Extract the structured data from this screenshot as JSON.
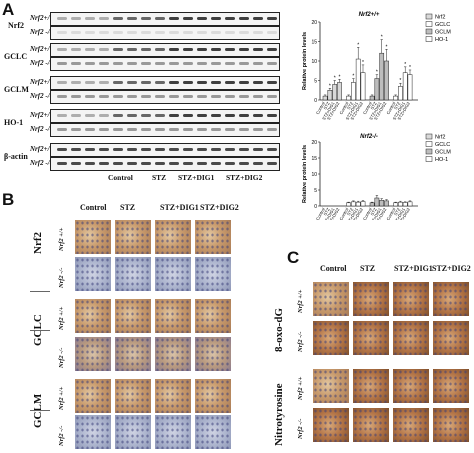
{
  "panels": {
    "a": "A",
    "b": "B",
    "c": "C"
  },
  "westerns": {
    "genotypes": [
      "Nrf2+/+",
      "Nrf2 -/-"
    ],
    "proteins": [
      "Nrf2",
      "GCLC",
      "GCLM",
      "HO-1",
      "β-actin"
    ],
    "groups": [
      "Control",
      "STZ",
      "STZ+DIG1",
      "STZ+DIG2"
    ]
  },
  "ihc_b": {
    "columns": [
      "Control",
      "STZ",
      "STZ+DIG1",
      "STZ+DIG2"
    ],
    "markers": [
      "Nrf2",
      "GCLC",
      "GCLM"
    ],
    "genotypes": [
      "Nrf2 +/+",
      "Nrf2 -/-"
    ]
  },
  "ihc_c": {
    "columns": [
      "Control",
      "STZ",
      "STZ+DIG1",
      "STZ+DIG2"
    ],
    "markers": [
      "8-oxo-dG",
      "Nitrotyrosine"
    ],
    "genotypes": [
      "Nrf2 +/+",
      "Nrf2 -/-"
    ]
  },
  "chart_data": [
    {
      "type": "bar",
      "title": "Nrf2+/+",
      "ylabel": "Relative protein levels",
      "ylim": [
        0,
        20
      ],
      "yticks": [
        "0",
        "5",
        "10",
        "15",
        "20"
      ],
      "legend": [
        "Nrf2",
        "GCLC",
        "GCLM",
        "HO-1"
      ],
      "legend_position": "top-right",
      "groups": [
        "Nrf2",
        "GCLC",
        "GCLM",
        "HO-1"
      ],
      "categories": [
        "Control",
        "STZ",
        "STZ+DIG1",
        "STZ+DIG2"
      ],
      "series": [
        {
          "name": "Nrf2",
          "values": [
            1,
            2.5,
            4,
            4.5
          ],
          "errors": [
            0.3,
            0.5,
            1.0,
            0.8
          ]
        },
        {
          "name": "GCLC",
          "values": [
            1,
            4.5,
            10.5,
            7
          ],
          "errors": [
            0.3,
            1.0,
            3.0,
            2.0
          ]
        },
        {
          "name": "GCLM",
          "values": [
            1,
            5.5,
            12,
            10
          ],
          "errors": [
            0.3,
            1.0,
            3.5,
            3.0
          ]
        },
        {
          "name": "HO-1",
          "values": [
            1,
            3.5,
            7,
            6.5
          ],
          "errors": [
            0.3,
            0.8,
            1.5,
            1.2
          ]
        }
      ],
      "colors": [
        "#d9d9d9",
        "#ffffff",
        "#bdbdbd",
        "#ffffff"
      ],
      "star_label": "*"
    },
    {
      "type": "bar",
      "title": "Nrf2-/-",
      "ylabel": "Relative protein levels",
      "ylim": [
        0,
        20
      ],
      "yticks": [
        "0",
        "5",
        "10",
        "15",
        "20"
      ],
      "legend": [
        "Nrf2",
        "GCLC",
        "GCLM",
        "HO-1"
      ],
      "legend_position": "top-right",
      "groups": [
        "Nrf2",
        "GCLC",
        "GCLM",
        "HO-1"
      ],
      "categories": [
        "Control",
        "STZ",
        "STZ+DIG1",
        "STZ+DIG2"
      ],
      "series": [
        {
          "name": "Nrf2",
          "values": [
            0,
            0,
            0,
            0
          ],
          "errors": [
            0,
            0,
            0,
            0
          ]
        },
        {
          "name": "GCLC",
          "values": [
            1,
            1.3,
            1.2,
            1.4
          ],
          "errors": [
            0.2,
            0.3,
            0.3,
            0.3
          ]
        },
        {
          "name": "GCLM",
          "values": [
            1,
            2.5,
            1.8,
            1.6
          ],
          "errors": [
            0.2,
            0.8,
            0.5,
            0.4
          ]
        },
        {
          "name": "HO-1",
          "values": [
            1,
            1.2,
            1.1,
            1.3
          ],
          "errors": [
            0.2,
            0.3,
            0.2,
            0.3
          ]
        }
      ],
      "colors": [
        "#d9d9d9",
        "#ffffff",
        "#bdbdbd",
        "#ffffff"
      ]
    }
  ]
}
